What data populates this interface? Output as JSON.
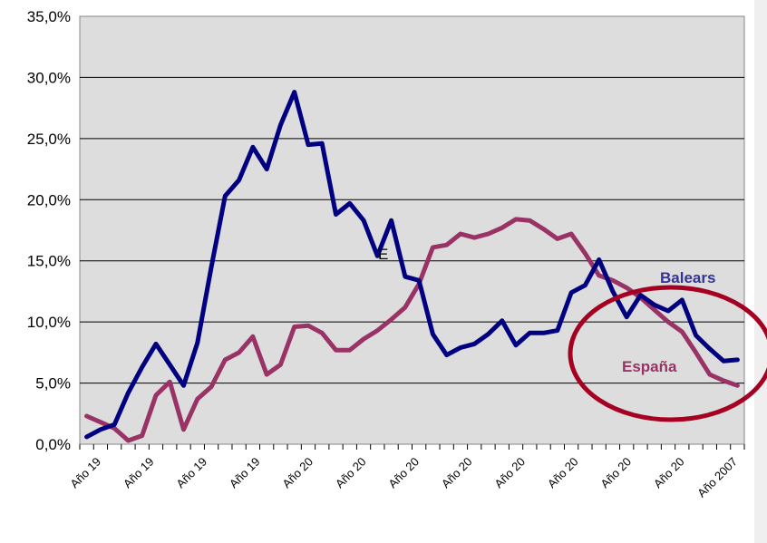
{
  "chart_data": {
    "type": "line",
    "title": "",
    "xlabel": "",
    "ylabel": "",
    "ylim": [
      0,
      35
    ],
    "yticks": [
      "0,0%",
      "5,0%",
      "10,0%",
      "15,0%",
      "20,0%",
      "25,0%",
      "30,0%",
      "35,0%"
    ],
    "grid": true,
    "x_category_labels": [
      "Año 19",
      "Año 19",
      "Año 19",
      "Año 19",
      "Año 20",
      "Año 20",
      "Año 20",
      "Año 20",
      "Año 20",
      "Año 20",
      "Año 20",
      "Año 20",
      "Año 2007"
    ],
    "series": [
      {
        "name": "Balears",
        "color": "#000080",
        "values": [
          0.6,
          1.2,
          1.6,
          4.2,
          6.3,
          8.2,
          6.5,
          4.8,
          8.3,
          14.5,
          20.3,
          21.6,
          24.3,
          22.5,
          26.1,
          28.8,
          24.5,
          24.6,
          18.8,
          19.7,
          18.3,
          15.4,
          18.3,
          13.7,
          13.4,
          9.0,
          7.3,
          7.9,
          8.2,
          9.0,
          10.1,
          8.1,
          9.1,
          9.1,
          9.3,
          12.4,
          13.0,
          15.1,
          12.5,
          10.4,
          12.2,
          11.4,
          10.9,
          11.8,
          8.9,
          7.8,
          6.8,
          6.9
        ]
      },
      {
        "name": "España",
        "color": "#993366",
        "values": [
          2.3,
          1.8,
          1.3,
          0.3,
          0.7,
          4.0,
          5.1,
          1.2,
          3.7,
          4.7,
          6.9,
          7.5,
          8.8,
          5.7,
          6.5,
          9.6,
          9.7,
          9.1,
          7.7,
          7.7,
          8.6,
          9.3,
          10.2,
          11.2,
          13.1,
          16.1,
          16.3,
          17.2,
          16.9,
          17.2,
          17.7,
          18.4,
          18.3,
          17.6,
          16.8,
          17.2,
          15.6,
          13.8,
          13.4,
          12.8,
          12.0,
          11.0,
          10.0,
          9.2,
          7.5,
          5.7,
          5.2,
          4.8
        ]
      }
    ],
    "annotations": [
      {
        "text": "Balears",
        "color": "#333399"
      },
      {
        "text": "España",
        "color": "#993366"
      },
      {
        "text": "E",
        "color": "#000000"
      }
    ],
    "highlight_circle_color": "#a50021",
    "plot_background": "#dddddd"
  }
}
